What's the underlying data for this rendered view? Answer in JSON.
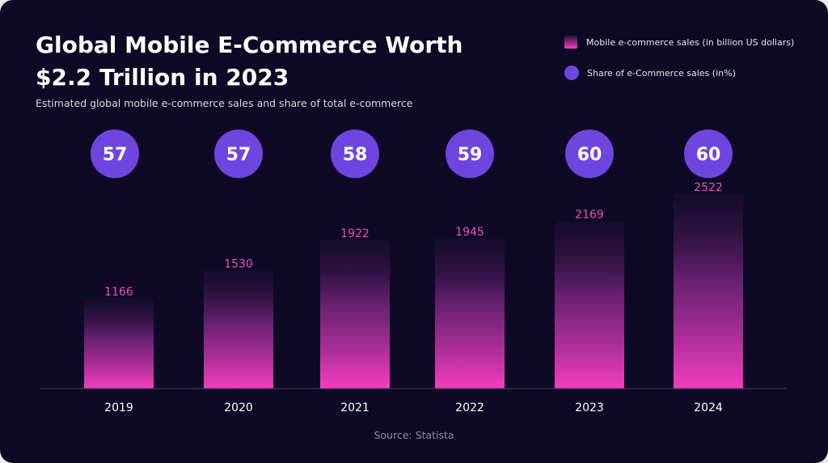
{
  "title": "Global Mobile E-Commerce Worth $2.2 Trillion in 2023",
  "subtitle": "Estimated global mobile e-commerce sales and share of total e-commerce",
  "source": "Source: Statista",
  "legend": {
    "sales_label": "Mobile e-commerce sales (in billion US dollars)",
    "share_label": "Share of e-Commerce sales (in%)"
  },
  "colors": {
    "background": "#0e0a25",
    "bar_bottom": "#f53dbf",
    "bar_top": "#2a1040",
    "bar_value_label": "#f04bc6",
    "share_circle": "#6e46df",
    "axis_line": "#4a4568"
  },
  "chart_data": {
    "type": "bar",
    "title": "Global Mobile E-Commerce Worth $2.2 Trillion in 2023",
    "subtitle": "Estimated global mobile e-commerce sales and share of total e-commerce",
    "categories": [
      "2019",
      "2020",
      "2021",
      "2022",
      "2023",
      "2024"
    ],
    "series": [
      {
        "name": "Mobile e-commerce sales (in billion US dollars)",
        "values": [
          1166,
          1530,
          1922,
          1945,
          2169,
          2522
        ]
      },
      {
        "name": "Share of e-Commerce sales (in%)",
        "values": [
          57,
          57,
          58,
          59,
          60,
          60
        ]
      }
    ],
    "xlabel": "",
    "ylabel": "",
    "ylim": [
      0,
      2522
    ],
    "grid": false,
    "legend_position": "top-right"
  }
}
